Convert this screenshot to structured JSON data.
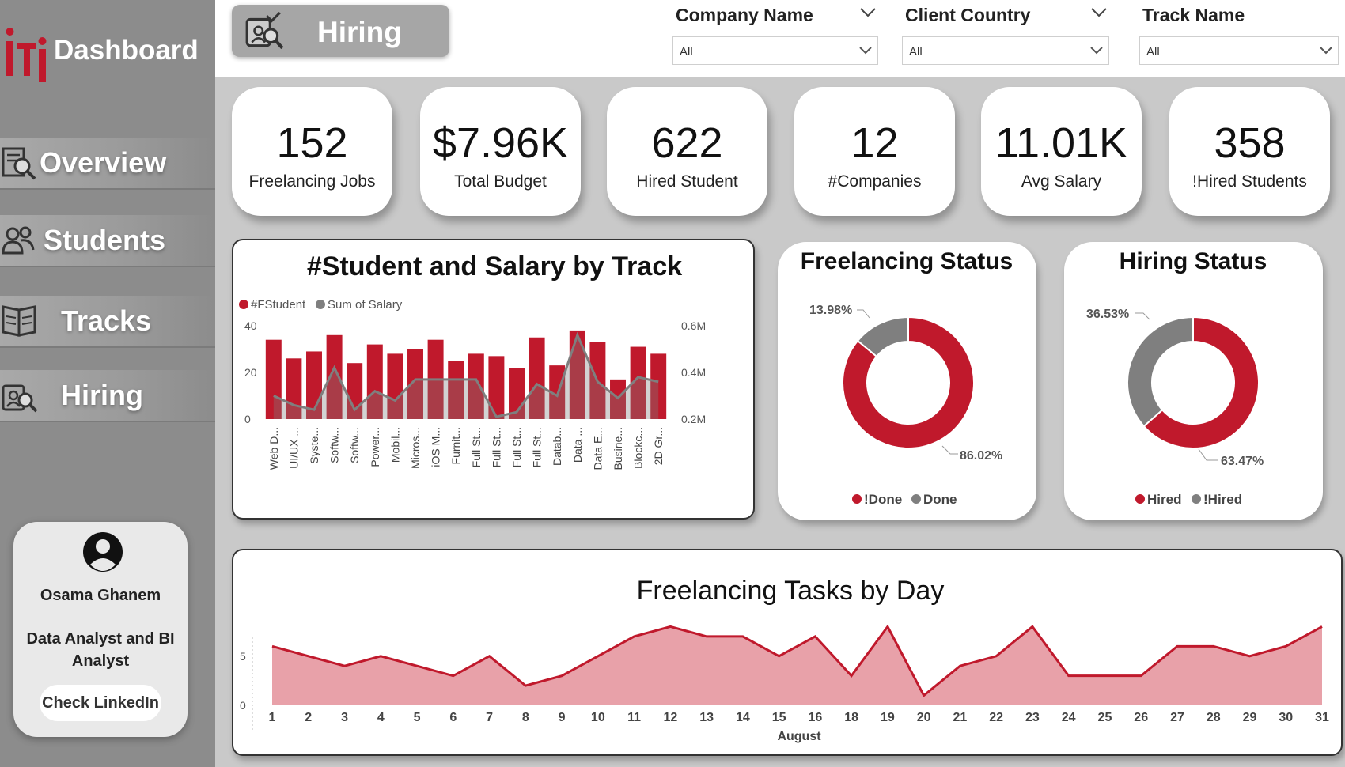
{
  "app": {
    "title": "Dashboard"
  },
  "sidebar": {
    "items": [
      {
        "label": "Overview",
        "icon": "overview-search-icon"
      },
      {
        "label": "Students",
        "icon": "students-icon"
      },
      {
        "label": "Tracks",
        "icon": "book-icon"
      },
      {
        "label": "Hiring",
        "icon": "hiring-icon"
      }
    ],
    "profile": {
      "name": "Osama Ghanem",
      "title": "Data Analyst and BI Analyst",
      "link_label": "Check LinkedIn"
    }
  },
  "header": {
    "page_title": "Hiring",
    "filters": [
      {
        "label": "Company Name",
        "value": "All"
      },
      {
        "label": "Client Country",
        "value": "All"
      },
      {
        "label": "Track Name",
        "value": "All"
      }
    ]
  },
  "kpis": [
    {
      "value": "152",
      "label": "Freelancing Jobs"
    },
    {
      "value": "$7.96K",
      "label": "Total Budget"
    },
    {
      "value": "622",
      "label": "Hired Student"
    },
    {
      "value": "12",
      "label": "#Companies"
    },
    {
      "value": "11.01K",
      "label": "Avg Salary"
    },
    {
      "value": "358",
      "label": "!Hired Students"
    }
  ],
  "colors": {
    "accent": "#c0192c",
    "grey": "#7f7f7f",
    "sidebar": "#8c8c8c"
  },
  "chart_data": [
    {
      "type": "bar",
      "title": "#Student and Salary by Track",
      "legend": [
        "#FStudent",
        "Sum of Salary"
      ],
      "categories": [
        "Web D...",
        "UI/UX ...",
        "Syste...",
        "Softw...",
        "Softw...",
        "Power...",
        "Mobil...",
        "Micros...",
        "iOS M...",
        "Furnit...",
        "Full St...",
        "Full St...",
        "Full St...",
        "Full St...",
        "Datab...",
        "Data ...",
        "Data E...",
        "Busine...",
        "Blockc...",
        "2D Gr..."
      ],
      "series": [
        {
          "name": "#FStudent",
          "axis": "left",
          "values": [
            34,
            26,
            29,
            36,
            24,
            32,
            28,
            30,
            34,
            25,
            28,
            27,
            22,
            35,
            23,
            38,
            33,
            17,
            31,
            28
          ]
        },
        {
          "name": "Sum of Salary",
          "axis": "right",
          "values": [
            0.3,
            0.26,
            0.24,
            0.42,
            0.24,
            0.32,
            0.28,
            0.37,
            0.37,
            0.37,
            0.37,
            0.21,
            0.23,
            0.35,
            0.3,
            0.56,
            0.36,
            0.29,
            0.38,
            0.36
          ]
        }
      ],
      "y_left": {
        "range": [
          0,
          40
        ],
        "ticks": [
          "0",
          "20",
          "40"
        ]
      },
      "y_right": {
        "range": [
          0.2,
          0.6
        ],
        "ticks": [
          "0.2M",
          "0.4M",
          "0.6M"
        ]
      }
    },
    {
      "type": "pie",
      "title": "Freelancing Status",
      "slices": [
        {
          "name": "!Done",
          "value": 86.02,
          "label": "86.02%"
        },
        {
          "name": "Done",
          "value": 13.98,
          "label": "13.98%"
        }
      ]
    },
    {
      "type": "pie",
      "title": "Hiring Status",
      "slices": [
        {
          "name": "Hired",
          "value": 63.47,
          "label": "63.47%"
        },
        {
          "name": "!Hired",
          "value": 36.53,
          "label": "36.53%"
        }
      ]
    },
    {
      "type": "area",
      "title": "Freelancing Tasks by Day",
      "xlabel": "August",
      "x": [
        "1",
        "2",
        "3",
        "4",
        "5",
        "6",
        "7",
        "8",
        "9",
        "10",
        "11",
        "12",
        "13",
        "14",
        "15",
        "16",
        "18",
        "19",
        "20",
        "21",
        "22",
        "23",
        "24",
        "25",
        "26",
        "27",
        "28",
        "29",
        "30",
        "31"
      ],
      "values": [
        6,
        5,
        4,
        5,
        4,
        3,
        5,
        2,
        3,
        5,
        7,
        8,
        7,
        7,
        5,
        7,
        3,
        8,
        1,
        4,
        5,
        8,
        3,
        3,
        3,
        6,
        6,
        5,
        6,
        8
      ],
      "y_ticks": [
        "0",
        "5"
      ],
      "ylim": [
        0,
        9
      ]
    }
  ]
}
